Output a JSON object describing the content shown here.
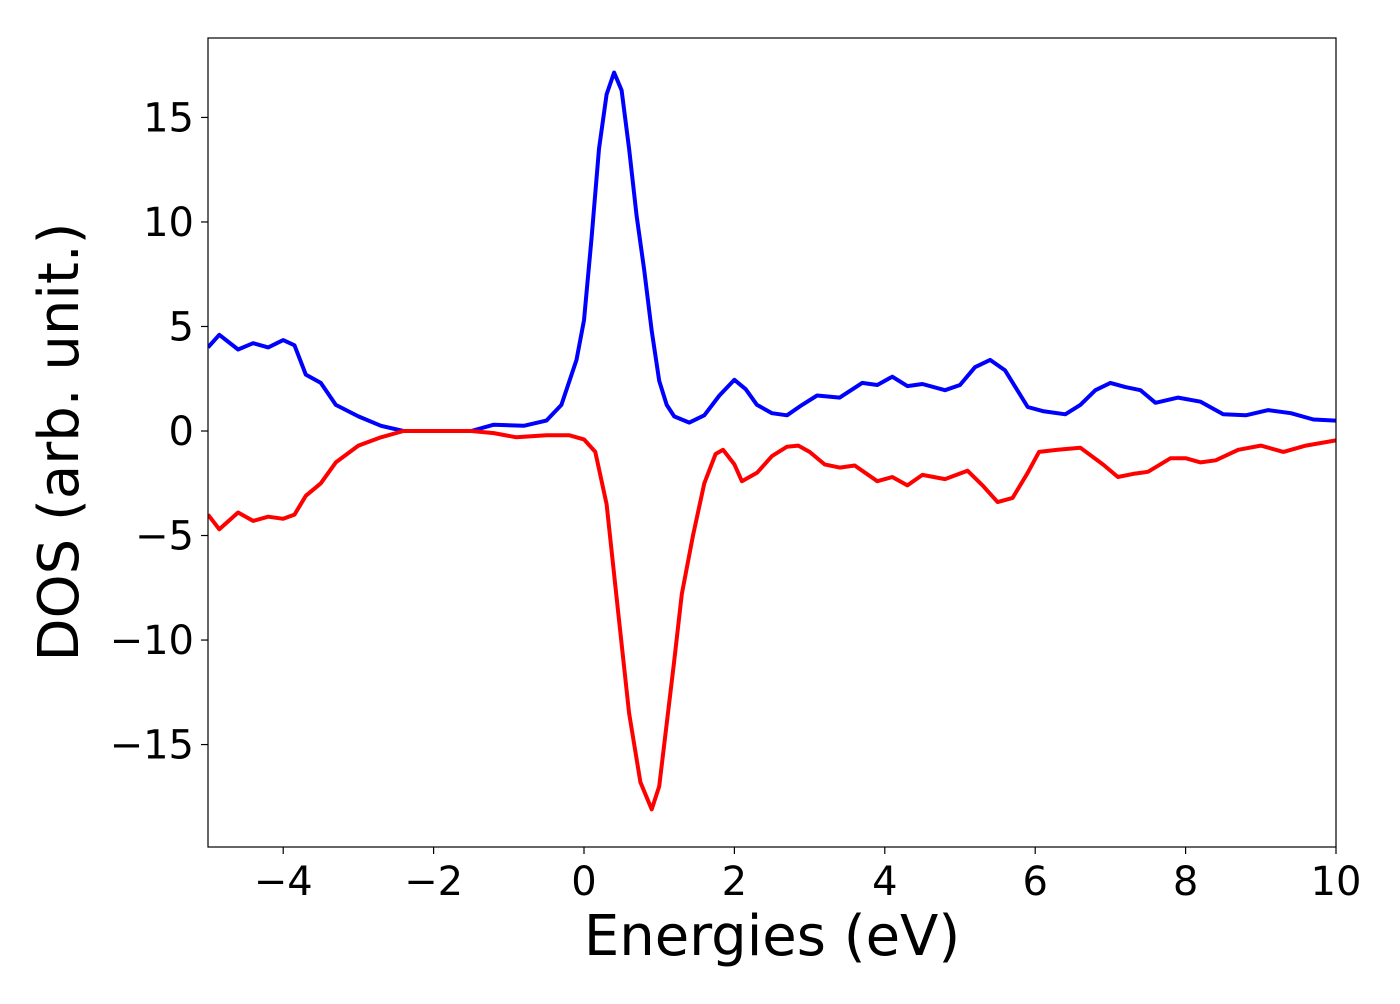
{
  "chart_data": {
    "type": "line",
    "xlabel": "Energies (eV)",
    "ylabel": "DOS (arb. unit.)",
    "xlim": [
      -5,
      10
    ],
    "ylim": [
      -19.9,
      18.8
    ],
    "xticks": [
      {
        "value": -4,
        "label": "−4"
      },
      {
        "value": -2,
        "label": "−2"
      },
      0,
      2,
      4,
      6,
      8,
      10
    ],
    "yticks": [
      {
        "value": -15,
        "label": "−15"
      },
      {
        "value": -10,
        "label": "−10"
      },
      {
        "value": -5,
        "label": "−5"
      },
      0,
      5,
      10,
      15
    ],
    "grid": false,
    "series": [
      {
        "color": "#0000ff",
        "x": [
          -5,
          -4.85,
          -4.6,
          -4.4,
          -4.2,
          -4.0,
          -3.85,
          -3.7,
          -3.5,
          -3.3,
          -3.0,
          -2.7,
          -2.4,
          -2,
          -1.5,
          -1.2,
          -0.8,
          -0.5,
          -0.3,
          -0.1,
          0,
          0.1,
          0.2,
          0.3,
          0.4,
          0.5,
          0.6,
          0.7,
          0.8,
          0.9,
          1.0,
          1.1,
          1.2,
          1.4,
          1.6,
          1.8,
          2.0,
          2.15,
          2.3,
          2.5,
          2.7,
          2.9,
          3.1,
          3.4,
          3.7,
          3.9,
          4.1,
          4.3,
          4.5,
          4.8,
          5.0,
          5.2,
          5.4,
          5.6,
          5.9,
          6.1,
          6.4,
          6.6,
          6.8,
          7.0,
          7.2,
          7.4,
          7.6,
          7.9,
          8.2,
          8.5,
          8.8,
          9.1,
          9.4,
          9.7,
          10
        ],
        "values": [
          4.0,
          4.6,
          3.9,
          4.2,
          4.0,
          4.35,
          4.1,
          2.7,
          2.3,
          1.25,
          0.7,
          0.25,
          0,
          0,
          0,
          0.3,
          0.25,
          0.5,
          1.25,
          3.4,
          5.3,
          9.2,
          13.5,
          16.1,
          17.15,
          16.3,
          13.5,
          10.3,
          7.7,
          4.8,
          2.4,
          1.25,
          0.7,
          0.4,
          0.75,
          1.7,
          2.45,
          2.0,
          1.25,
          0.85,
          0.75,
          1.25,
          1.7,
          1.6,
          2.3,
          2.2,
          2.6,
          2.15,
          2.25,
          1.95,
          2.2,
          3.05,
          3.4,
          2.9,
          1.15,
          0.95,
          0.8,
          1.25,
          1.95,
          2.3,
          2.1,
          1.95,
          1.35,
          1.6,
          1.4,
          0.8,
          0.75,
          1.0,
          0.85,
          0.55,
          0.5
        ]
      },
      {
        "color": "#ff0000",
        "x": [
          -5,
          -4.85,
          -4.6,
          -4.4,
          -4.2,
          -4.0,
          -3.85,
          -3.7,
          -3.5,
          -3.3,
          -3.0,
          -2.7,
          -2.4,
          -2,
          -1.5,
          -1.2,
          -0.9,
          -0.5,
          -0.2,
          0.0,
          0.15,
          0.3,
          0.45,
          0.6,
          0.75,
          0.9,
          1.0,
          1.1,
          1.2,
          1.3,
          1.45,
          1.6,
          1.75,
          1.85,
          2.0,
          2.1,
          2.3,
          2.5,
          2.7,
          2.85,
          3.0,
          3.2,
          3.4,
          3.6,
          3.9,
          4.1,
          4.3,
          4.5,
          4.8,
          5.1,
          5.3,
          5.5,
          5.7,
          5.9,
          6.05,
          6.3,
          6.6,
          6.9,
          7.1,
          7.3,
          7.5,
          7.8,
          8.0,
          8.2,
          8.4,
          8.7,
          9.0,
          9.3,
          9.6,
          10
        ],
        "values": [
          -4.0,
          -4.7,
          -3.9,
          -4.3,
          -4.1,
          -4.2,
          -4.0,
          -3.1,
          -2.5,
          -1.5,
          -0.7,
          -0.3,
          0,
          0,
          0,
          -0.1,
          -0.3,
          -0.2,
          -0.2,
          -0.4,
          -1.0,
          -3.5,
          -8.5,
          -13.5,
          -16.8,
          -18.1,
          -17.0,
          -14.0,
          -11,
          -7.8,
          -5.0,
          -2.5,
          -1.1,
          -0.9,
          -1.6,
          -2.4,
          -2.0,
          -1.2,
          -0.75,
          -0.7,
          -1.0,
          -1.6,
          -1.75,
          -1.65,
          -2.4,
          -2.2,
          -2.6,
          -2.1,
          -2.3,
          -1.9,
          -2.6,
          -3.4,
          -3.2,
          -2.0,
          -1.0,
          -0.9,
          -0.8,
          -1.6,
          -2.2,
          -2.05,
          -1.95,
          -1.3,
          -1.3,
          -1.5,
          -1.4,
          -0.9,
          -0.7,
          -1.0,
          -0.7,
          -0.45
        ]
      }
    ]
  }
}
